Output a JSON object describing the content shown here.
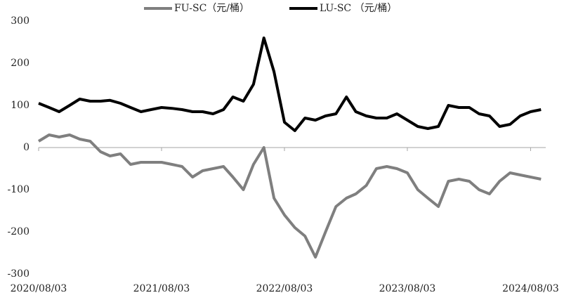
{
  "chart_data": {
    "type": "line",
    "x": [
      "2020/08/03",
      "2020/09/03",
      "2020/10/03",
      "2020/11/03",
      "2020/12/03",
      "2021/01/03",
      "2021/02/03",
      "2021/03/03",
      "2021/04/03",
      "2021/05/03",
      "2021/06/03",
      "2021/07/03",
      "2021/08/03",
      "2021/09/03",
      "2021/10/03",
      "2021/11/03",
      "2021/12/03",
      "2022/01/03",
      "2022/02/03",
      "2022/03/03",
      "2022/04/03",
      "2022/05/03",
      "2022/06/03",
      "2022/07/03",
      "2022/08/03",
      "2022/09/03",
      "2022/10/03",
      "2022/11/03",
      "2022/12/03",
      "2023/01/03",
      "2023/02/03",
      "2023/03/03",
      "2023/04/03",
      "2023/05/03",
      "2023/06/03",
      "2023/07/03",
      "2023/08/03",
      "2023/09/03",
      "2023/10/03",
      "2023/11/03",
      "2023/12/03",
      "2024/01/03",
      "2024/02/03",
      "2024/03/03",
      "2024/04/03",
      "2024/05/03",
      "2024/06/03",
      "2024/07/03",
      "2024/08/03",
      "2024/09/03"
    ],
    "series": [
      {
        "name": "FU-SC（元/桶）",
        "color": "#7f7f7f",
        "values": [
          15,
          30,
          25,
          30,
          20,
          15,
          -10,
          -20,
          -15,
          -40,
          -35,
          -35,
          -35,
          -40,
          -45,
          -70,
          -55,
          -50,
          -45,
          -70,
          -100,
          -40,
          0,
          -120,
          -160,
          -190,
          -210,
          -260,
          -200,
          -140,
          -120,
          -110,
          -90,
          -50,
          -45,
          -50,
          -60,
          -100,
          -120,
          -140,
          -80,
          -75,
          -80,
          -100,
          -110,
          -80,
          -60,
          -65,
          -70,
          -75
        ]
      },
      {
        "name": "LU-SC （元/桶）",
        "color": "#000000",
        "values": [
          105,
          95,
          85,
          100,
          115,
          110,
          110,
          112,
          105,
          95,
          85,
          90,
          95,
          93,
          90,
          85,
          85,
          80,
          90,
          120,
          110,
          150,
          260,
          180,
          60,
          40,
          70,
          65,
          75,
          80,
          120,
          85,
          75,
          70,
          70,
          80,
          65,
          50,
          45,
          50,
          100,
          95,
          95,
          80,
          75,
          50,
          55,
          75,
          85,
          90
        ]
      }
    ],
    "xlim": [
      "2020/08/03",
      "2024/09/17"
    ],
    "xticks": [
      "2020/08/03",
      "2021/08/03",
      "2022/08/03",
      "2023/08/03",
      "2024/08/03"
    ],
    "ylim": [
      -300,
      300
    ],
    "yticks": [
      -300,
      -200,
      -100,
      0,
      100,
      200,
      300
    ],
    "legend": "top"
  }
}
